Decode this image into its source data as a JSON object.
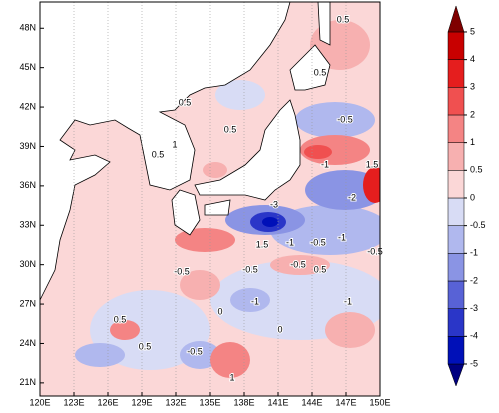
{
  "map": {
    "xlim": [
      120,
      150
    ],
    "ylim": [
      20,
      50
    ],
    "grid": true,
    "xticks": [
      {
        "value": 120,
        "label": "120E"
      },
      {
        "value": 123,
        "label": "123E"
      },
      {
        "value": 126,
        "label": "126E"
      },
      {
        "value": 129,
        "label": "129E"
      },
      {
        "value": 132,
        "label": "132E"
      },
      {
        "value": 135,
        "label": "135E"
      },
      {
        "value": 138,
        "label": "138E"
      },
      {
        "value": 141,
        "label": "141E"
      },
      {
        "value": 144,
        "label": "144E"
      },
      {
        "value": 147,
        "label": "147E"
      },
      {
        "value": 150,
        "label": "150E"
      }
    ],
    "yticks": [
      {
        "value": 21,
        "label": "21N"
      },
      {
        "value": 24,
        "label": "24N"
      },
      {
        "value": 27,
        "label": "27N"
      },
      {
        "value": 30,
        "label": "30N"
      },
      {
        "value": 33,
        "label": "33N"
      },
      {
        "value": 36,
        "label": "36N"
      },
      {
        "value": 39,
        "label": "39N"
      },
      {
        "value": 42,
        "label": "42N"
      },
      {
        "value": 45,
        "label": "45N"
      },
      {
        "value": 48,
        "label": "48N"
      }
    ],
    "colorbar": {
      "levels": [
        -5,
        -4,
        -3,
        -2,
        -1,
        -0.5,
        0,
        0.5,
        1,
        2,
        3,
        4,
        5
      ],
      "colors": [
        "#000080",
        "#0010b8",
        "#2a36c8",
        "#5862d6",
        "#8a94e4",
        "#b0b8ee",
        "#d8dcf5",
        "#fbd7d7",
        "#f7b0b0",
        "#f48484",
        "#f05050",
        "#e51e1e",
        "#c80000",
        "#7f0000"
      ]
    },
    "contour_labels": [
      "0.5",
      "0.5",
      "0.5",
      "0.5",
      "-0.5",
      "1",
      "0.5",
      "-1",
      "1.5",
      "-2",
      "-3",
      "1.5",
      "-1",
      "-0.5",
      "-0.5",
      "-1",
      "-0.5",
      "-0.5",
      "0.5",
      "-1",
      "-0.5",
      "0.5",
      "-0.5",
      "1",
      "-1",
      "0.5",
      "0",
      "0"
    ]
  }
}
